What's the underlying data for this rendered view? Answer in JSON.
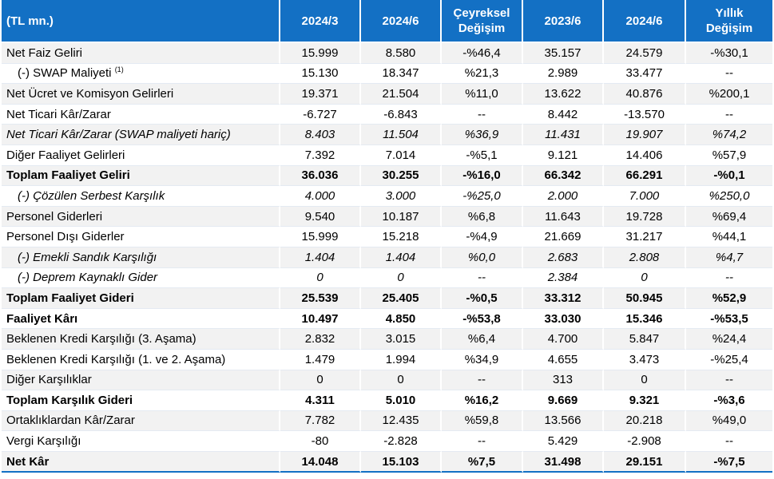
{
  "header": {
    "label": "(TL mn.)",
    "cols": [
      "2024/3",
      "2024/6"
    ],
    "qoq_line1": "Çeyreksel",
    "qoq_line2": "Değişim",
    "cols2": [
      "2023/6",
      "2024/6"
    ],
    "yoy_line1": "Yıllık",
    "yoy_line2": "Değişim"
  },
  "rows": [
    {
      "label": "Net Faiz Geliri",
      "values": [
        "15.999",
        "8.580",
        "-%46,4",
        "35.157",
        "24.579",
        "-%30,1"
      ]
    },
    {
      "label": "(-) SWAP Maliyeti",
      "sup": "(1)",
      "values": [
        "15.130",
        "18.347",
        "%21,3",
        "2.989",
        "33.477",
        "--"
      ]
    },
    {
      "label": "Net Ücret ve Komisyon Gelirleri",
      "values": [
        "19.371",
        "21.504",
        "%11,0",
        "13.622",
        "40.876",
        "%200,1"
      ]
    },
    {
      "label": "Net Ticari Kâr/Zarar",
      "values": [
        "-6.727",
        "-6.843",
        "--",
        "8.442",
        "-13.570",
        "--"
      ]
    },
    {
      "label": "Net Ticari Kâr/Zarar (SWAP maliyeti hariç)",
      "values": [
        "8.403",
        "11.504",
        "%36,9",
        "11.431",
        "19.907",
        "%74,2"
      ]
    },
    {
      "label": "Diğer Faaliyet Gelirleri",
      "values": [
        "7.392",
        "7.014",
        "-%5,1",
        "9.121",
        "14.406",
        "%57,9"
      ]
    },
    {
      "label": "Toplam Faaliyet Geliri",
      "values": [
        "36.036",
        "30.255",
        "-%16,0",
        "66.342",
        "66.291",
        "-%0,1"
      ]
    },
    {
      "label": "(-) Çözülen Serbest Karşılık",
      "values": [
        "4.000",
        "3.000",
        "-%25,0",
        "2.000",
        "7.000",
        "%250,0"
      ]
    },
    {
      "label": "Personel Giderleri",
      "values": [
        "9.540",
        "10.187",
        "%6,8",
        "11.643",
        "19.728",
        "%69,4"
      ]
    },
    {
      "label": "Personel Dışı Giderler",
      "values": [
        "15.999",
        "15.218",
        "-%4,9",
        "21.669",
        "31.217",
        "%44,1"
      ]
    },
    {
      "label": "(-) Emekli Sandık Karşılığı",
      "values": [
        "1.404",
        "1.404",
        "%0,0",
        "2.683",
        "2.808",
        "%4,7"
      ]
    },
    {
      "label": "(-) Deprem Kaynaklı Gider",
      "values": [
        "0",
        "0",
        "--",
        "2.384",
        "0",
        "--"
      ]
    },
    {
      "label": "Toplam Faaliyet Gideri",
      "values": [
        "25.539",
        "25.405",
        "-%0,5",
        "33.312",
        "50.945",
        "%52,9"
      ]
    },
    {
      "label": "Faaliyet Kârı",
      "values": [
        "10.497",
        "4.850",
        "-%53,8",
        "33.030",
        "15.346",
        "-%53,5"
      ]
    },
    {
      "label": "Beklenen Kredi Karşılığı (3. Aşama)",
      "values": [
        "2.832",
        "3.015",
        "%6,4",
        "4.700",
        "5.847",
        "%24,4"
      ]
    },
    {
      "label": "Beklenen Kredi Karşılığı (1. ve 2. Aşama)",
      "values": [
        "1.479",
        "1.994",
        "%34,9",
        "4.655",
        "3.473",
        "-%25,4"
      ]
    },
    {
      "label": "Diğer Karşılıklar",
      "values": [
        "0",
        "0",
        "--",
        "313",
        "0",
        "--"
      ]
    },
    {
      "label": "Toplam Karşılık Gideri",
      "values": [
        "4.311",
        "5.010",
        "%16,2",
        "9.669",
        "9.321",
        "-%3,6"
      ]
    },
    {
      "label": "Ortaklıklardan Kâr/Zarar",
      "values": [
        "7.782",
        "12.435",
        "%59,8",
        "13.566",
        "20.218",
        "%49,0"
      ]
    },
    {
      "label": "Vergi Karşılığı",
      "values": [
        "-80",
        "-2.828",
        "--",
        "5.429",
        "-2.908",
        "--"
      ]
    },
    {
      "label": "Net Kâr",
      "values": [
        "14.048",
        "15.103",
        "%7,5",
        "31.498",
        "29.151",
        "-%7,5"
      ]
    }
  ],
  "colors": {
    "header_bg": "#1370c4",
    "shade": "#f2f2f2"
  }
}
